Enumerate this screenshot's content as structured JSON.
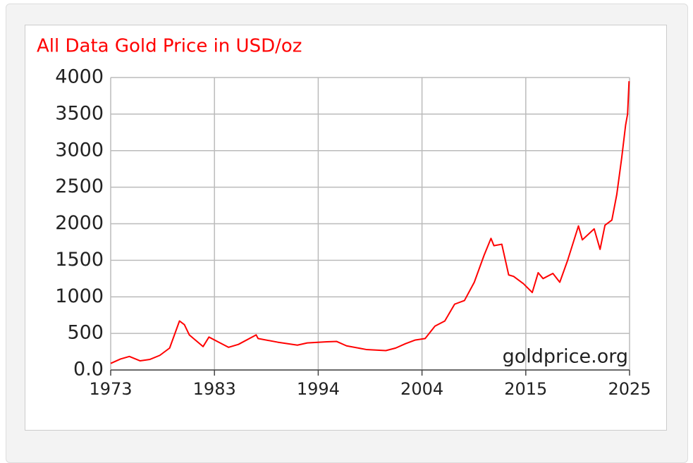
{
  "chart_data": {
    "type": "line",
    "title": "All Data Gold Price in USD/oz",
    "annotation": "goldprice.org",
    "x": [
      1973,
      1974,
      1974.9,
      1976,
      1977,
      1978,
      1979,
      1980,
      1980.5,
      1981,
      1982.4,
      1983,
      1984,
      1985,
      1986,
      1987.8,
      1988,
      1990,
      1992,
      1993,
      1995,
      1996,
      1997,
      1999,
      2001,
      2002,
      2003,
      2004,
      2005,
      2006,
      2007,
      2008,
      2009,
      2010,
      2011,
      2011.7,
      2012,
      2012.8,
      2013.5,
      2014,
      2015,
      2015.9,
      2016.5,
      2017,
      2018,
      2018.7,
      2019.5,
      2020.6,
      2021,
      2022.2,
      2022.8,
      2023.3,
      2024,
      2024.5,
      2025,
      2025.4,
      2025.6,
      2025.75
    ],
    "series": [
      {
        "name": "Gold Price",
        "color": "#ff0000",
        "values": [
          90,
          150,
          185,
          125,
          145,
          200,
          300,
          670,
          620,
          480,
          320,
          450,
          380,
          310,
          350,
          480,
          430,
          380,
          340,
          370,
          385,
          390,
          330,
          280,
          265,
          300,
          360,
          410,
          430,
          600,
          670,
          900,
          950,
          1200,
          1570,
          1800,
          1700,
          1720,
          1300,
          1280,
          1180,
          1060,
          1330,
          1250,
          1320,
          1200,
          1500,
          1970,
          1780,
          1930,
          1650,
          1980,
          2050,
          2400,
          2900,
          3350,
          3500,
          3950
        ]
      }
    ],
    "xlim": [
      1973,
      2025.8
    ],
    "xticks": [
      1973,
      {
        "value": 1983.56,
        "label": "1983"
      },
      {
        "value": 1994.12,
        "label": "1994"
      },
      {
        "value": 2004.68,
        "label": "2004"
      },
      {
        "value": 2015.24,
        "label": "2015"
      },
      {
        "value": 2025.8,
        "label": "2025"
      }
    ],
    "ylim": [
      0,
      4000
    ],
    "yticks": [
      {
        "value": 0,
        "label": "0.0"
      },
      500,
      1000,
      1500,
      2000,
      2500,
      3000,
      3500,
      4000
    ],
    "grid": true
  }
}
